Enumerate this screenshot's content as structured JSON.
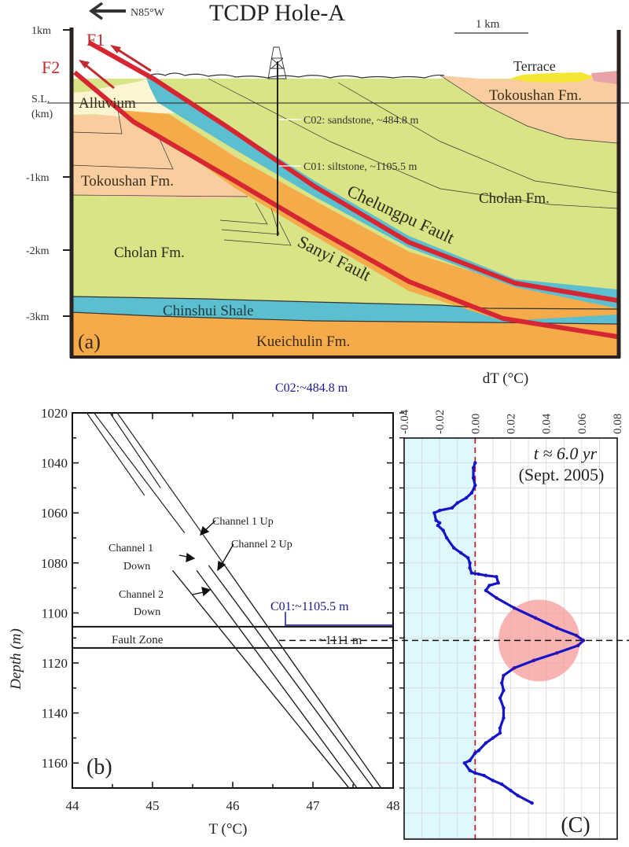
{
  "colors": {
    "cholan": "#d9e486",
    "tokoushan": "#f8cea0",
    "alluvium": "#fdf5d2",
    "chinshui": "#5bbfcf",
    "kueichulin": "#f6ab4a",
    "terrace": "#f5e636",
    "pink_unit": "#e9a3a8",
    "fault": "#d62632",
    "c_label": "#1a1a8c",
    "dT_line_blue": "#1515c8",
    "dT_line_purple": "#3a0fa0",
    "anomaly_circle": "#f59a9a",
    "negative_region": "#dff8fd",
    "zero_line": "#b02a2a"
  },
  "panel_a": {
    "title": "TCDP Hole-A",
    "direction_label": "N85°W",
    "scale_bar_label": "1 km",
    "panel_label": "(a)",
    "y_ticks": [
      "1km",
      "S.L.",
      "(km)",
      "-1km",
      "-2km",
      "-3km"
    ],
    "faults": [
      {
        "id": "F1",
        "label": "F1",
        "name": "Chelungpu Fault"
      },
      {
        "id": "F2",
        "label": "F2",
        "name": "Sanyi Fault"
      }
    ],
    "formations": {
      "alluvium": "Alluvium",
      "terrace": "Terrace",
      "tokoushan_right": "Tokoushan Fm.",
      "tokoushan_left": "Tokoushan Fm.",
      "cholan_right": "Cholan Fm.",
      "cholan_left": "Cholan Fm.",
      "chinshui": "Chinshui Shale",
      "kueichulin": "Kueichulin Fm."
    },
    "cores": [
      {
        "id": "C02",
        "label": "C02: sandstone, ~484.8 m"
      },
      {
        "id": "C01",
        "label": "C01: siltstone, ~1105.5 m"
      }
    ]
  },
  "chart_data": [
    {
      "type": "line",
      "panel": "(b)",
      "title": "",
      "xlabel": "T (°C)",
      "ylabel": "Depth (m)",
      "xlim": [
        44,
        48
      ],
      "ylim": [
        1170,
        1020
      ],
      "x_ticks": [
        "44",
        "45",
        "46",
        "47",
        "48"
      ],
      "y_ticks": [
        "1020",
        "1040",
        "1060",
        "1080",
        "1100",
        "1120",
        "1140",
        "1160"
      ],
      "grid": false,
      "series": [
        {
          "name": "Channel 1 Down",
          "points": [
            [
              44.18,
              1020
            ],
            [
              44.9,
              1053
            ]
          ],
          "continuation": [
            [
              45.25,
              1083
            ],
            [
              47.45,
              1170
            ]
          ]
        },
        {
          "name": "Channel 2 Down",
          "points": [
            [
              44.27,
              1020
            ],
            [
              45.4,
              1068
            ]
          ],
          "continuation": [
            [
              45.55,
              1083
            ],
            [
              47.55,
              1170
            ]
          ]
        },
        {
          "name": "Channel 1 Up",
          "points": [
            [
              44.47,
              1020
            ],
            [
              45.1,
              1050
            ]
          ],
          "continuation": [
            [
              45.7,
              1081
            ],
            [
              47.75,
              1170
            ]
          ]
        },
        {
          "name": "Channel 2 Up",
          "points": [
            [
              44.56,
              1020
            ],
            [
              45.9,
              1081
            ]
          ],
          "continuation": [
            [
              45.9,
              1081
            ],
            [
              47.85,
              1170
            ]
          ]
        }
      ],
      "annotations": {
        "ch1_up": "Channel 1 Up",
        "ch2_up": "Channel 2 Up",
        "ch1_down_l1": "Channel 1",
        "ch1_down_l2": "Down",
        "ch2_down_l1": "Channel 2",
        "ch2_down_l2": "Down",
        "fault_zone": "Fault Zone",
        "fault_zone_range": [
          1105.5,
          1114
        ],
        "c02_label": "C02:~484.8 m",
        "c01_label": "C01:~1105.5 m",
        "c01_depth": 1105.5,
        "depth_marker": "~1111 m",
        "depth_marker_value": 1111
      }
    },
    {
      "type": "line",
      "panel": "(C)",
      "title": "",
      "xlabel": "dT (°C)",
      "ylabel": "Depth (m)",
      "xlim": [
        -0.04,
        0.08
      ],
      "ylim": [
        1170,
        1020
      ],
      "x_ticks": [
        "-0.04",
        "-0.02",
        "0.00",
        "0.02",
        "0.04",
        "0.06",
        "0.08"
      ],
      "grid": true,
      "legend": "none",
      "annotation_line1": "t ≈ 6.0 yr",
      "annotation_line2": "(Sept. 2005)",
      "highlight": {
        "center_dT": 0.036,
        "center_depth": 1111,
        "radius_dT": 0.023
      },
      "reference_depth": 1111,
      "series": [
        {
          "name": "dT",
          "points": [
            [
              0.0,
              1040
            ],
            [
              -0.001,
              1042
            ],
            [
              -0.001,
              1046
            ],
            [
              0.0,
              1049
            ],
            [
              -0.002,
              1052
            ],
            [
              -0.005,
              1054
            ],
            [
              -0.01,
              1056
            ],
            [
              -0.013,
              1058
            ],
            [
              -0.02,
              1059
            ],
            [
              -0.023,
              1060
            ],
            [
              -0.022,
              1063
            ],
            [
              -0.02,
              1064
            ],
            [
              -0.021,
              1065
            ],
            [
              -0.018,
              1067
            ],
            [
              -0.016,
              1070
            ],
            [
              -0.012,
              1074
            ],
            [
              -0.008,
              1076
            ],
            [
              -0.004,
              1078
            ],
            [
              -0.003,
              1080
            ],
            [
              -0.003,
              1082
            ],
            [
              -0.002,
              1084
            ],
            [
              0.002,
              1084.5
            ],
            [
              0.006,
              1085
            ],
            [
              0.012,
              1085.5
            ],
            [
              0.013,
              1088
            ],
            [
              0.008,
              1089
            ],
            [
              0.006,
              1091
            ],
            [
              0.012,
              1094
            ],
            [
              0.022,
              1098
            ],
            [
              0.034,
              1102
            ],
            [
              0.046,
              1106
            ],
            [
              0.057,
              1109
            ],
            [
              0.061,
              1111
            ],
            [
              0.058,
              1113
            ],
            [
              0.046,
              1116
            ],
            [
              0.033,
              1119
            ],
            [
              0.022,
              1122
            ],
            [
              0.016,
              1125
            ],
            [
              0.015,
              1128
            ],
            [
              0.016,
              1131
            ],
            [
              0.014,
              1134
            ],
            [
              0.016,
              1138
            ],
            [
              0.016,
              1142
            ],
            [
              0.014,
              1146
            ],
            [
              0.014,
              1148
            ],
            [
              0.01,
              1150
            ],
            [
              0.006,
              1152
            ],
            [
              0.002,
              1155
            ],
            [
              0.0,
              1156
            ],
            [
              -0.003,
              1159
            ],
            [
              -0.006,
              1160
            ],
            [
              -0.003,
              1163
            ],
            [
              0.0,
              1164
            ],
            [
              0.005,
              1165
            ],
            [
              0.01,
              1167
            ],
            [
              0.015,
              1168.5
            ],
            [
              0.02,
              1171
            ],
            [
              0.024,
              1173
            ],
            [
              0.032,
              1176
            ]
          ]
        }
      ]
    }
  ]
}
